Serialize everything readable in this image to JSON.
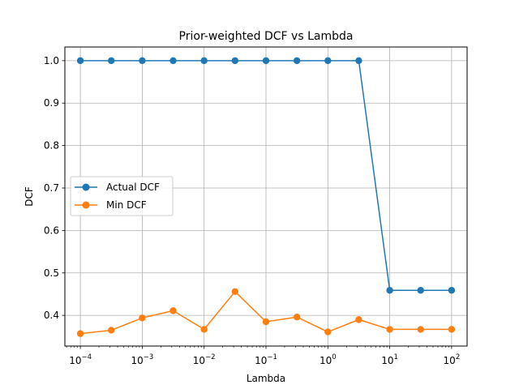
{
  "chart_data": {
    "type": "line",
    "title": "Prior-weighted DCF vs Lambda",
    "xlabel": "Lambda",
    "ylabel": "DCF",
    "x_scale": "log",
    "x": [
      0.0001,
      0.000316,
      0.001,
      0.00316,
      0.01,
      0.0316,
      0.1,
      0.316,
      1,
      3.16,
      10,
      31.6,
      100
    ],
    "xlim": [
      5.62e-05,
      178
    ],
    "ylim": [
      0.3277,
      1.0322
    ],
    "x_ticks": [
      {
        "value": 0.0001,
        "base": "10",
        "exp": "−4"
      },
      {
        "value": 0.001,
        "base": "10",
        "exp": "−3"
      },
      {
        "value": 0.01,
        "base": "10",
        "exp": "−2"
      },
      {
        "value": 0.1,
        "base": "10",
        "exp": "−1"
      },
      {
        "value": 1,
        "base": "10",
        "exp": "0"
      },
      {
        "value": 10,
        "base": "10",
        "exp": "1"
      },
      {
        "value": 100,
        "base": "10",
        "exp": "2"
      }
    ],
    "y_ticks": [
      {
        "value": 0.4,
        "label": "0.4"
      },
      {
        "value": 0.5,
        "label": "0.5"
      },
      {
        "value": 0.6,
        "label": "0.6"
      },
      {
        "value": 0.7,
        "label": "0.7"
      },
      {
        "value": 0.8,
        "label": "0.8"
      },
      {
        "value": 0.9,
        "label": "0.9"
      },
      {
        "value": 1.0,
        "label": "1.0"
      }
    ],
    "grid": true,
    "legend_position": "center-left",
    "series": [
      {
        "name": "Actual DCF",
        "color": "#1f77b4",
        "values": [
          1.0,
          1.0,
          1.0,
          1.0,
          1.0,
          1.0,
          1.0,
          1.0,
          1.0,
          1.0,
          0.459,
          0.459,
          0.459
        ]
      },
      {
        "name": "Min DCF",
        "color": "#ff7f0e",
        "values": [
          0.357,
          0.365,
          0.394,
          0.411,
          0.367,
          0.456,
          0.385,
          0.396,
          0.361,
          0.39,
          0.367,
          0.367,
          0.367
        ]
      }
    ]
  }
}
